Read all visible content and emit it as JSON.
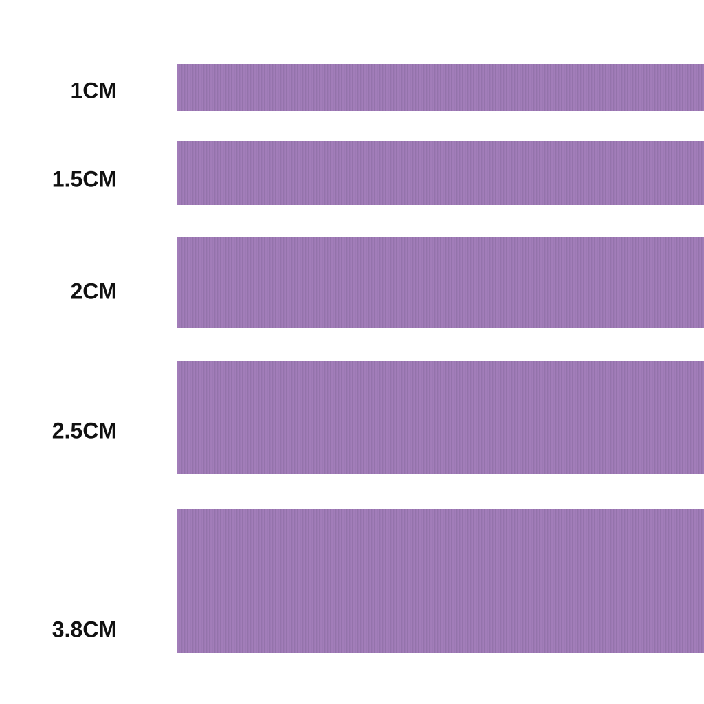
{
  "ribbons": [
    {
      "label": "1CM"
    },
    {
      "label": "1.5CM"
    },
    {
      "label": "2CM"
    },
    {
      "label": "2.5CM"
    },
    {
      "label": "3.8CM"
    }
  ]
}
